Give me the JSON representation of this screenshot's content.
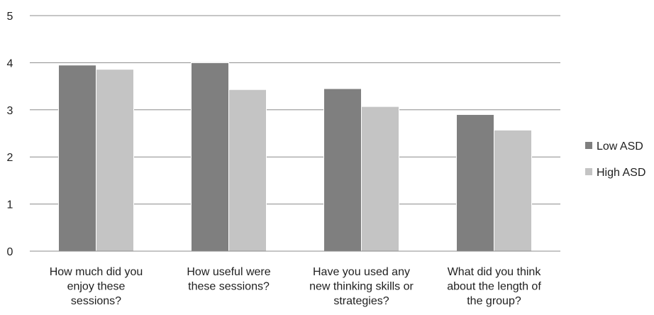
{
  "chart_data": {
    "type": "bar",
    "categories": [
      [
        "How much did you",
        "enjoy these",
        "sessions?"
      ],
      [
        "How useful were",
        "these sessions?"
      ],
      [
        "Have you used any",
        "new thinking skills or",
        "strategies?"
      ],
      [
        "What did you think",
        "about the length of",
        "the group?"
      ]
    ],
    "series": [
      {
        "name": "Low ASD",
        "color": "#7f7f7f",
        "values": [
          3.95,
          4.0,
          3.45,
          2.9
        ]
      },
      {
        "name": "High ASD",
        "color": "#c4c4c4",
        "values": [
          3.86,
          3.43,
          3.07,
          2.57
        ]
      }
    ],
    "ylim": [
      0,
      5
    ],
    "yticks": [
      "0",
      "1",
      "2",
      "3",
      "4",
      "5"
    ],
    "grid": true,
    "legend_position": "right",
    "title": "",
    "xlabel": "",
    "ylabel": ""
  }
}
